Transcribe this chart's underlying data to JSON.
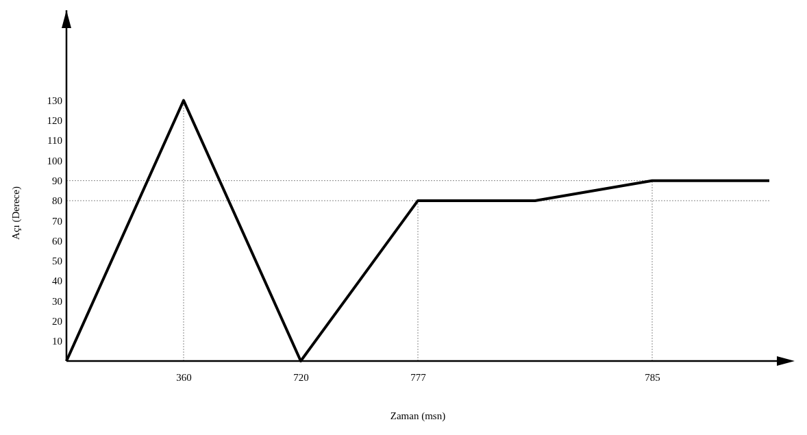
{
  "chart_data": {
    "type": "line",
    "xlabel": "Zaman (msn)",
    "ylabel": "Açı (Derece)",
    "categories": [
      null,
      "360",
      "720",
      "777",
      null,
      "785",
      null
    ],
    "series": [
      {
        "color": "#000000",
        "values": [
          0,
          130,
          0,
          80,
          80,
          90,
          90
        ]
      }
    ],
    "ylim": [
      0,
      175
    ],
    "yticks": [
      10,
      20,
      30,
      40,
      50,
      60,
      70,
      80,
      90,
      100,
      110,
      120,
      130
    ],
    "marker": "none",
    "line_style": "solid",
    "ref_lines": [
      {
        "axis": "y",
        "value": 90,
        "color": "#888888",
        "line_style": "dotted"
      },
      {
        "axis": "y",
        "value": 80,
        "color": "#888888",
        "line_style": "dotted"
      },
      {
        "axis": "x",
        "value": "360",
        "color": "#888888",
        "line_style": "dotted"
      },
      {
        "axis": "x",
        "value": "777",
        "color": "#888888",
        "line_style": "dotted"
      },
      {
        "axis": "x",
        "value": "785",
        "color": "#888888",
        "line_style": "dotted"
      }
    ]
  }
}
